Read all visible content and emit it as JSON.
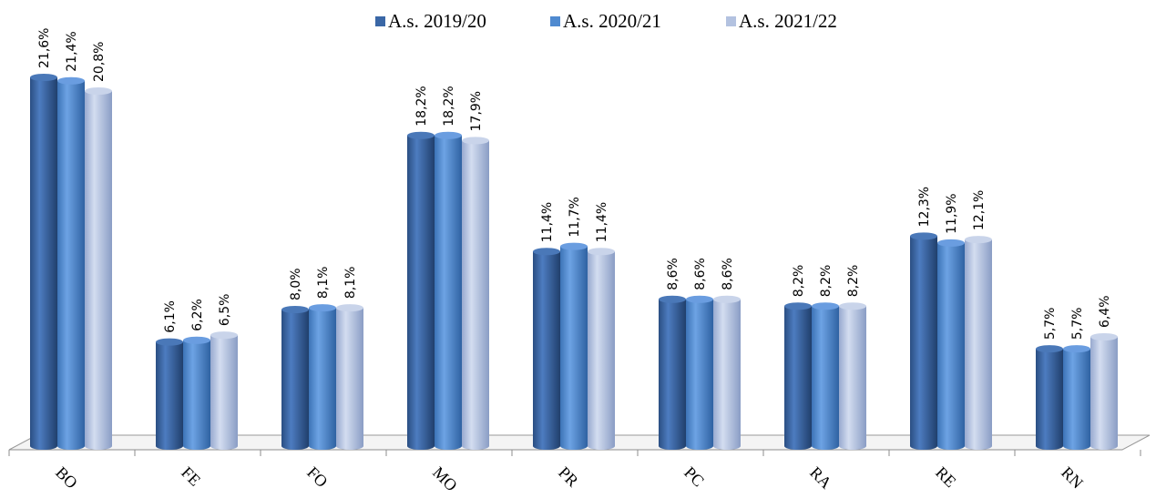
{
  "chart_data": {
    "type": "bar",
    "categories": [
      "BO",
      "FE",
      "FO",
      "MO",
      "PR",
      "PC",
      "RA",
      "RE",
      "RN"
    ],
    "series": [
      {
        "name": "A.s. 2019/20",
        "color": "#3a67a6",
        "values": [
          21.6,
          6.1,
          8.0,
          18.2,
          11.4,
          8.6,
          8.2,
          12.3,
          5.7
        ],
        "labels": [
          "21,6%",
          "6,1%",
          "8,0%",
          "18,2%",
          "11,4%",
          "8,6%",
          "8,2%",
          "12,3%",
          "5,7%"
        ]
      },
      {
        "name": "A.s. 2020/21",
        "color": "#4f8ad0",
        "values": [
          21.4,
          6.2,
          8.1,
          18.2,
          11.7,
          8.6,
          8.2,
          11.9,
          5.7
        ],
        "labels": [
          "21,4%",
          "6,2%",
          "8,1%",
          "18,2%",
          "11,7%",
          "8,6%",
          "8,2%",
          "11,9%",
          "5,7%"
        ]
      },
      {
        "name": "A.s. 2021/22",
        "color": "#b3c2e0",
        "values": [
          20.8,
          6.5,
          8.1,
          17.9,
          11.4,
          8.6,
          8.2,
          12.1,
          6.4
        ],
        "labels": [
          "20,8%",
          "6,5%",
          "8,1%",
          "17,9%",
          "11,4%",
          "8,6%",
          "8,2%",
          "12,1%",
          "6,4%"
        ]
      }
    ],
    "legend_position": "top",
    "grid": false,
    "ylim": [
      0,
      24
    ]
  }
}
